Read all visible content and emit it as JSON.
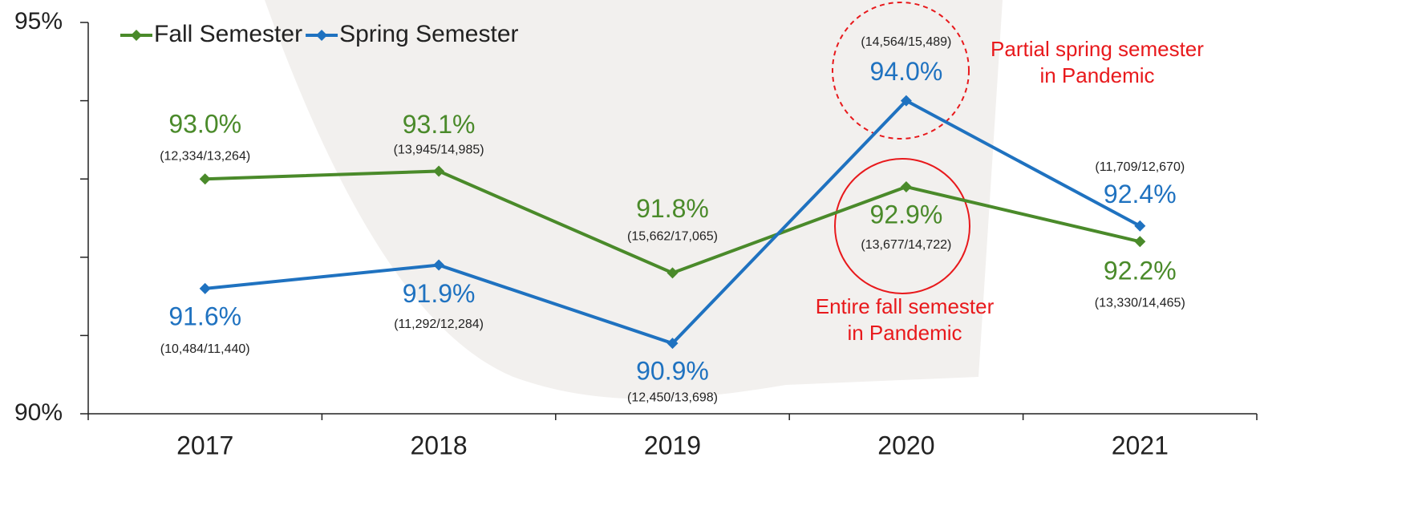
{
  "chart_data": {
    "type": "line",
    "categories": [
      "2017",
      "2018",
      "2019",
      "2020",
      "2021"
    ],
    "series": [
      {
        "name": "Fall Semester",
        "color": "#4a8a2a",
        "values": [
          93.0,
          93.1,
          91.8,
          92.9,
          92.2
        ],
        "value_labels": [
          "93.0%",
          "93.1%",
          "91.8%",
          "92.9%",
          "92.2%"
        ],
        "counts": [
          "(12,334/13,264)",
          "(13,945/14,985)",
          "(15,662/17,065)",
          "(13,677/14,722)",
          "(13,330/14,465)"
        ]
      },
      {
        "name": "Spring Semester",
        "color": "#1f72c0",
        "values": [
          91.6,
          91.9,
          90.9,
          94.0,
          92.4
        ],
        "value_labels": [
          "91.6%",
          "91.9%",
          "90.9%",
          "94.0%",
          "92.4%"
        ],
        "counts": [
          "(10,484/11,440)",
          "(11,292/12,284)",
          "(12,450/13,698)",
          "(14,564/15,489)",
          "(11,709/12,670)"
        ]
      }
    ],
    "ylim": [
      90,
      95
    ],
    "yticks": [
      {
        "value": 90,
        "label": "90%"
      },
      {
        "value": 95,
        "label": "95%"
      }
    ],
    "yminor_ticks": [
      91,
      92,
      93,
      94
    ],
    "annotations": [
      {
        "lines": [
          "Partial spring semester",
          "in Pandemic"
        ],
        "color": "#e8191c"
      },
      {
        "lines": [
          "Entire fall semester",
          "in Pandemic"
        ],
        "color": "#e8191c"
      }
    ]
  }
}
